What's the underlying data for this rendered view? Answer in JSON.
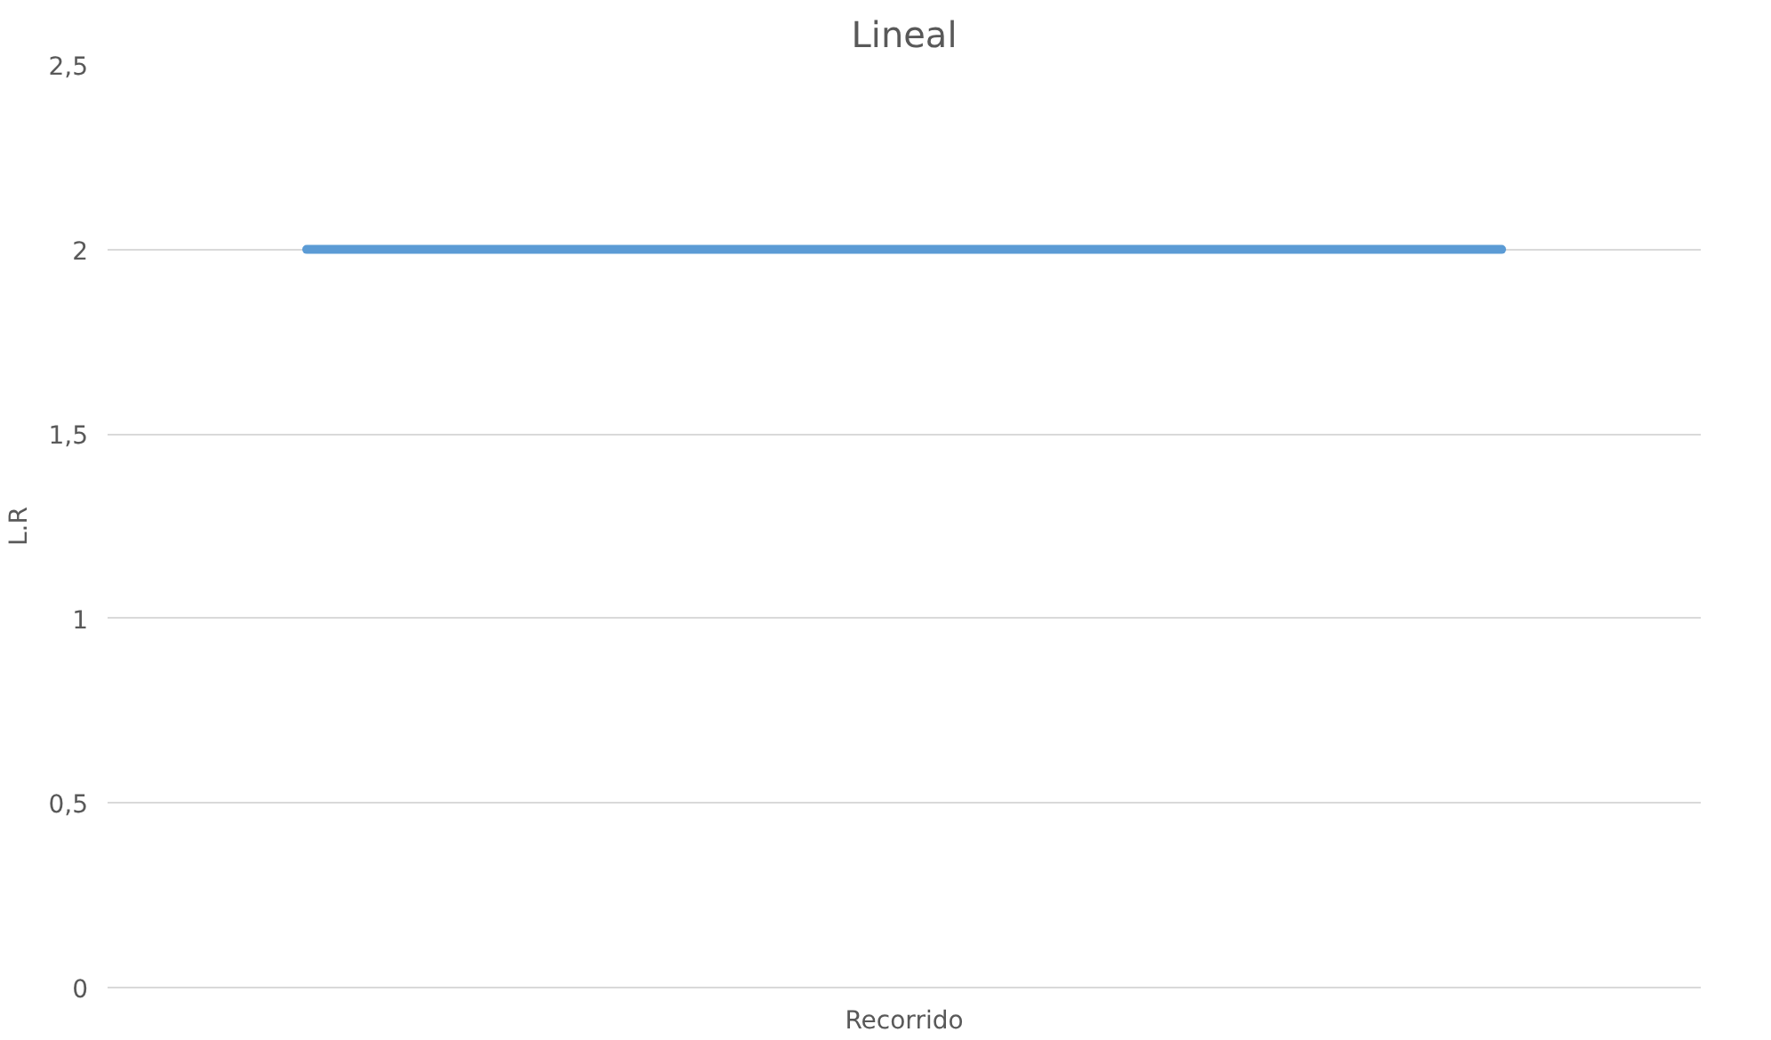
{
  "chart_data": {
    "type": "line",
    "title": "Lineal",
    "xlabel": "Recorrido",
    "ylabel": "L.R",
    "categories": [
      null,
      null,
      null,
      null
    ],
    "series": [
      {
        "color": "#5b9bd5",
        "values": [
          2,
          2,
          2,
          2
        ]
      }
    ],
    "ylim": [
      0,
      2.5
    ],
    "yticks": [
      0,
      {
        "value": 0.5,
        "label": "0,5"
      },
      1,
      {
        "value": 1.5,
        "label": "1,5"
      },
      2,
      {
        "value": 2.5,
        "label": "2,5"
      }
    ],
    "grid": "y",
    "marker": "none",
    "line_style": "solid"
  }
}
